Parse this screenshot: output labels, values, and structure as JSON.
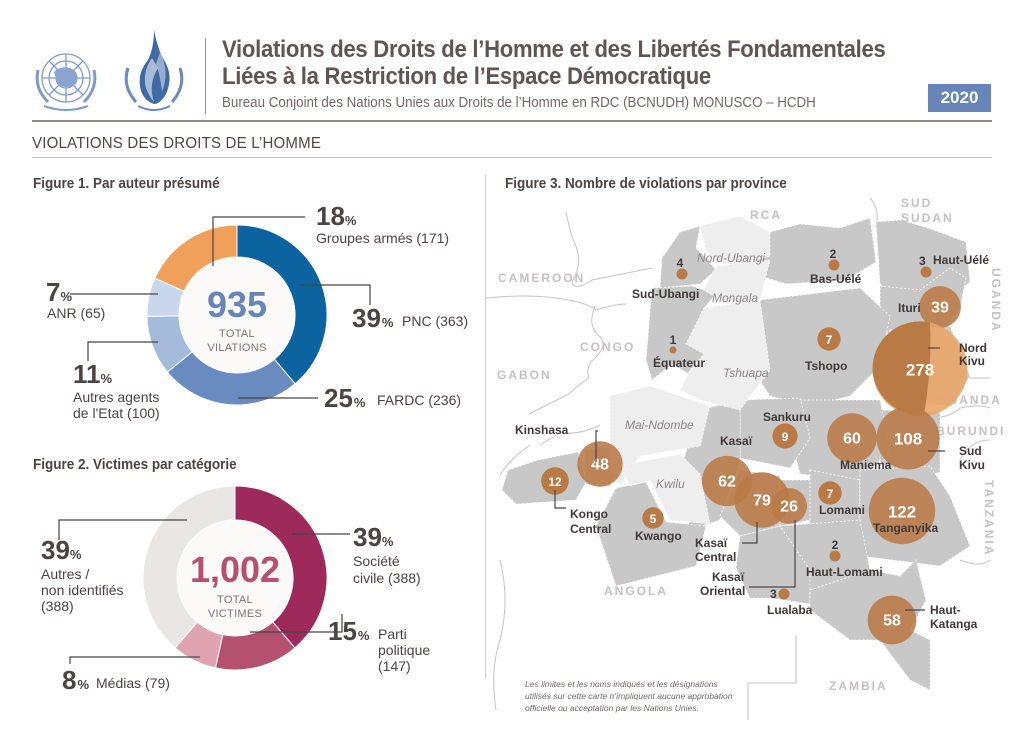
{
  "header": {
    "title_line1": "Violations des Droits de l’Homme et des Libertés Fondamentales",
    "title_line2": "Liées à la Restriction de l’Espace Démocratique",
    "subtitle": "Bureau Conjoint des Nations Unies aux Droits de l’Homme en RDC (BCNUDH) MONUSCO – HCDH",
    "year": "2020",
    "logos": [
      "un-emblem-icon",
      "ohchr-flame-icon"
    ]
  },
  "section_title": "VIOLATIONS DES DROITS DE L’HOMME",
  "colors": {
    "pnc": "#0b64a0",
    "fardc": "#6a8bbf",
    "autres_agents": "#a5bbdc",
    "anr": "#c8d7ec",
    "groupes_armes": "#f0a05a",
    "societe_civile": "#9e2a5b",
    "parti_politique": "#b5516f",
    "medias": "#e0a3b2",
    "autres": "#e8e7e6",
    "bubble": "#b97a45",
    "bubble_light": "#e9a465",
    "province_data": "#c9c8c8",
    "province_nodata": "#eeeeee"
  },
  "chart_data": [
    {
      "type": "pie",
      "title": "Figure 1. Par auteur présumé",
      "center_value": "935",
      "center_label_line1": "TOTAL",
      "center_label_line2": "VILATIONS",
      "pct_symbol": "%",
      "slices": [
        {
          "key": "pnc",
          "label": "PNC (363)",
          "name": "PNC",
          "count": 363,
          "percent": 39,
          "pct_text": "39"
        },
        {
          "key": "fardc",
          "label": "FARDC (236)",
          "name": "FARDC",
          "count": 236,
          "percent": 25,
          "pct_text": "25"
        },
        {
          "key": "autres_agents",
          "label_line1": "Autres agents",
          "label_line2": "de l'Etat (100)",
          "name": "Autres agents de l'Etat",
          "count": 100,
          "percent": 11,
          "pct_text": "11"
        },
        {
          "key": "anr",
          "label": "ANR (65)",
          "name": "ANR",
          "count": 65,
          "percent": 7,
          "pct_text": "7"
        },
        {
          "key": "groupes_armes",
          "label": "Groupes armés (171)",
          "name": "Groupes armés",
          "count": 171,
          "percent": 18,
          "pct_text": "18"
        }
      ]
    },
    {
      "type": "pie",
      "title": "Figure 2. Victimes par catégorie",
      "center_value": "1,002",
      "center_label_line1": "TOTAL",
      "center_label_line2": "VICTIMES",
      "pct_symbol": "%",
      "slices": [
        {
          "key": "societe_civile",
          "label_line1": "Société",
          "label_line2": "civile (388)",
          "name": "Société civile",
          "count": 388,
          "percent": 39,
          "pct_text": "39"
        },
        {
          "key": "parti_politique",
          "label_line1": "Parti",
          "label_line2": "politique",
          "label_line3": "(147)",
          "name": "Parti politique",
          "count": 147,
          "percent": 15,
          "pct_text": "15"
        },
        {
          "key": "medias",
          "label": "Médias (79)",
          "name": "Médias",
          "count": 79,
          "percent": 8,
          "pct_text": "8"
        },
        {
          "key": "autres",
          "label_line1": "Autres /",
          "label_line2": "non identifiés",
          "label_line3": "(388)",
          "name": "Autres / non identifiés",
          "count": 388,
          "percent": 39,
          "pct_text": "39"
        }
      ]
    },
    {
      "type": "map",
      "title": "Figure 3. Nombre de violations par province",
      "provinces": [
        {
          "name": "Sud-Ubangi",
          "value": 4
        },
        {
          "name": "Équateur",
          "value": 1
        },
        {
          "name": "Bas-Uélé",
          "value": 2
        },
        {
          "name": "Haut-Uélé",
          "value": 3
        },
        {
          "name": "Ituri",
          "value": 39
        },
        {
          "name": "Tshopo",
          "value": 7
        },
        {
          "name": "Nord Kivu",
          "value": 278
        },
        {
          "name": "Sud Kivu",
          "value": 108
        },
        {
          "name": "Maniema",
          "value": 60
        },
        {
          "name": "Sankuru",
          "value": 9
        },
        {
          "name": "Kinshasa",
          "value": 48
        },
        {
          "name": "Kongo Central",
          "value": 12
        },
        {
          "name": "Kwango",
          "value": 5
        },
        {
          "name": "Kasaï",
          "value": 62
        },
        {
          "name": "Kasaï Central",
          "value": 79
        },
        {
          "name": "Kasaï Oriental",
          "value": 26
        },
        {
          "name": "Lomami",
          "value": 7
        },
        {
          "name": "Tanganyika",
          "value": 122
        },
        {
          "name": "Haut-Lomami",
          "value": 2
        },
        {
          "name": "Lualaba",
          "value": 3
        },
        {
          "name": "Haut-Katanga",
          "value": 58
        }
      ],
      "no_data_provinces": [
        "Nord-Ubangi",
        "Mongala",
        "Tshuapa",
        "Mai-Ndombe",
        "Kwilu"
      ],
      "countries": [
        "RCA",
        "SUD",
        "SUDAN",
        "CAMEROON",
        "UGANDA",
        "CONGO",
        "GABON",
        "RWANDA",
        "BURUNDI",
        "TANZANIA",
        "ANGOLA",
        "ZAMBIA"
      ],
      "labels": {
        "sud_ubangi": "Sud-Ubangi",
        "equateur": "Équateur",
        "bas_uele": "Bas-Uélé",
        "haut_uele": "Haut-Uélé",
        "ituri": "Ituri",
        "tshopo": "Tshopo",
        "nord_kivu_1": "Nord",
        "nord_kivu_2": "Kivu",
        "sud_kivu_1": "Sud",
        "sud_kivu_2": "Kivu",
        "maniema": "Maniema",
        "sankuru": "Sankuru",
        "kinshasa": "Kinshasa",
        "kongo_central_1": "Kongo",
        "kongo_central_2": "Central",
        "kwango": "Kwango",
        "kasai": "Kasaï",
        "kasai_central_1": "Kasaï",
        "kasai_central_2": "Central",
        "kasai_oriental_1": "Kasaï",
        "kasai_oriental_2": "Oriental",
        "lomami": "Lomami",
        "tanganyika": "Tanganyika",
        "haut_lomami": "Haut-Lomami",
        "lualaba": "Lualaba",
        "haut_katanga_1": "Haut-",
        "haut_katanga_2": "Katanga",
        "nord_ubangi": "Nord-Ubangi",
        "mongala": "Mongala",
        "tshuapa": "Tshuapa",
        "mai_ndombe": "Mai-Ndombe",
        "kwilu": "Kwilu"
      },
      "disclaimer_line1": "Les limites et les noms indiqués et les désignations",
      "disclaimer_line2": "utilisés sur cette carte n’impliquent aucune approbation",
      "disclaimer_line3": "officielle ou acceptation par les Nations Unies."
    }
  ]
}
